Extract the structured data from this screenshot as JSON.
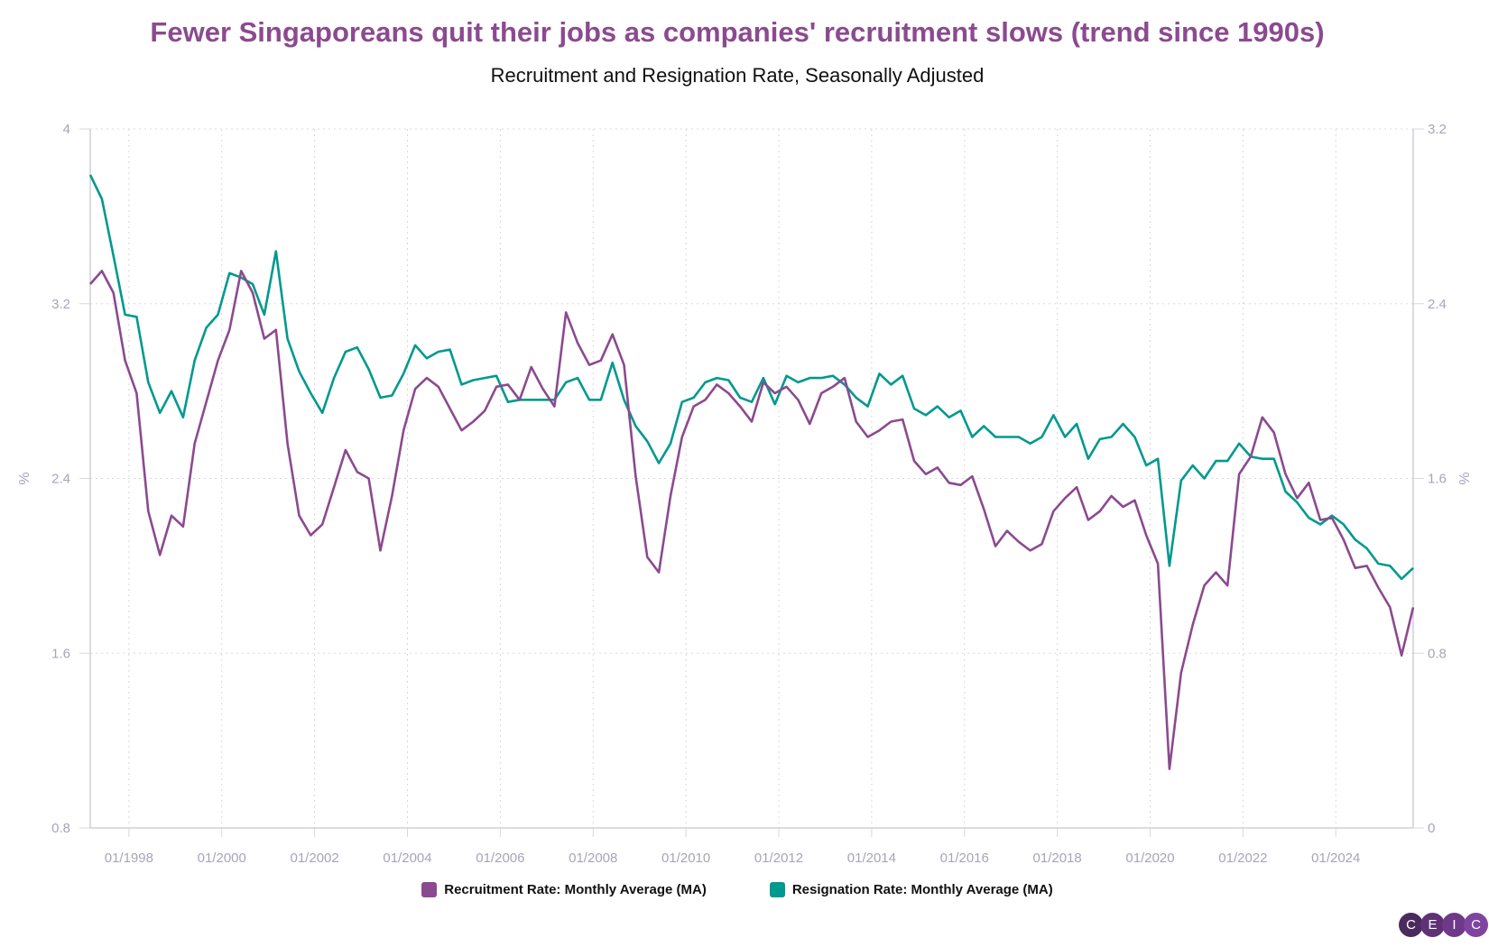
{
  "title": "Fewer Singaporeans quit their jobs as companies' recruitment slows (trend since 1990s)",
  "subtitle": "Recruitment and Resignation Rate, Seasonally Adjusted",
  "logo": [
    "C",
    "E",
    "I",
    "C"
  ],
  "colors": {
    "recruitment": "#8b4a8f",
    "resignation": "#00998f",
    "axis": "#a8a4b8",
    "grid": "#d8d8d8"
  },
  "chart_data": {
    "type": "line",
    "title": "Fewer Singaporeans quit their jobs as companies' recruitment slows (trend since 1990s)",
    "subtitle": "Recruitment and Resignation Rate, Seasonally Adjusted",
    "ylabel_left": "%",
    "ylabel_right": "%",
    "ylim_left": [
      0.8,
      4
    ],
    "ylim_right": [
      0,
      3.2
    ],
    "yticks_left": [
      "0.8",
      "1.6",
      "2.4",
      "3.2",
      "4"
    ],
    "yticks_right": [
      "0",
      "0.8",
      "1.6",
      "2.4",
      "3.2"
    ],
    "xticks": [
      "01/1998",
      "01/2000",
      "01/2002",
      "01/2004",
      "01/2006",
      "01/2008",
      "01/2010",
      "01/2012",
      "01/2014",
      "01/2016",
      "01/2018",
      "01/2020",
      "01/2022",
      "01/2024"
    ],
    "grid": true,
    "legend_position": "bottom",
    "x": [
      "03/1997",
      "06/1997",
      "09/1997",
      "12/1997",
      "03/1998",
      "06/1998",
      "09/1998",
      "12/1998",
      "03/1999",
      "06/1999",
      "09/1999",
      "12/1999",
      "03/2000",
      "06/2000",
      "09/2000",
      "12/2000",
      "03/2001",
      "06/2001",
      "09/2001",
      "12/2001",
      "03/2002",
      "06/2002",
      "09/2002",
      "12/2002",
      "03/2003",
      "06/2003",
      "09/2003",
      "12/2003",
      "03/2004",
      "06/2004",
      "09/2004",
      "12/2004",
      "03/2005",
      "06/2005",
      "09/2005",
      "12/2005",
      "03/2006",
      "06/2006",
      "09/2006",
      "12/2006",
      "03/2007",
      "06/2007",
      "09/2007",
      "12/2007",
      "03/2008",
      "06/2008",
      "09/2008",
      "12/2008",
      "03/2009",
      "06/2009",
      "09/2009",
      "12/2009",
      "03/2010",
      "06/2010",
      "09/2010",
      "12/2010",
      "03/2011",
      "06/2011",
      "09/2011",
      "12/2011",
      "03/2012",
      "06/2012",
      "09/2012",
      "12/2012",
      "03/2013",
      "06/2013",
      "09/2013",
      "12/2013",
      "03/2014",
      "06/2014",
      "09/2014",
      "12/2014",
      "03/2015",
      "06/2015",
      "09/2015",
      "12/2015",
      "03/2016",
      "06/2016",
      "09/2016",
      "12/2016",
      "03/2017",
      "06/2017",
      "09/2017",
      "12/2017",
      "03/2018",
      "06/2018",
      "09/2018",
      "12/2018",
      "03/2019",
      "06/2019",
      "09/2019",
      "12/2019",
      "03/2020",
      "06/2020",
      "09/2020",
      "12/2020",
      "03/2021",
      "06/2021",
      "09/2021",
      "12/2021",
      "03/2022",
      "06/2022",
      "09/2022",
      "12/2022",
      "03/2023",
      "06/2023",
      "09/2023",
      "12/2023",
      "03/2024",
      "06/2024",
      "09/2024",
      "12/2024",
      "03/2025",
      "06/2025",
      "09/2025"
    ],
    "series": [
      {
        "name": "Recruitment Rate: Monthly Average (MA)",
        "axis": "left",
        "values": [
          3.29,
          3.35,
          3.25,
          2.94,
          2.79,
          2.25,
          2.05,
          2.23,
          2.18,
          2.56,
          2.75,
          2.94,
          3.08,
          3.35,
          3.25,
          3.04,
          3.08,
          2.56,
          2.23,
          2.14,
          2.19,
          2.36,
          2.53,
          2.43,
          2.4,
          2.07,
          2.32,
          2.62,
          2.81,
          2.86,
          2.82,
          2.72,
          2.62,
          2.66,
          2.71,
          2.82,
          2.83,
          2.76,
          2.91,
          2.81,
          2.73,
          3.16,
          3.02,
          2.92,
          2.94,
          3.06,
          2.92,
          2.41,
          2.04,
          1.97,
          2.32,
          2.59,
          2.73,
          2.76,
          2.83,
          2.79,
          2.73,
          2.66,
          2.84,
          2.79,
          2.82,
          2.76,
          2.65,
          2.79,
          2.82,
          2.86,
          2.66,
          2.59,
          2.62,
          2.66,
          2.67,
          2.48,
          2.42,
          2.45,
          2.38,
          2.37,
          2.41,
          2.26,
          2.09,
          2.16,
          2.11,
          2.07,
          2.1,
          2.25,
          2.31,
          2.36,
          2.21,
          2.25,
          2.32,
          2.27,
          2.3,
          2.14,
          2.01,
          1.07,
          1.51,
          1.73,
          1.91,
          1.97,
          1.91,
          2.42,
          2.5,
          2.68,
          2.61,
          2.42,
          2.31,
          2.38,
          2.21,
          2.22,
          2.12,
          1.99,
          2.0,
          1.9,
          1.81,
          1.59,
          1.81
        ]
      },
      {
        "name": "Resignation Rate: Monthly Average (MA)",
        "axis": "right",
        "values": [
          2.99,
          2.88,
          2.62,
          2.35,
          2.34,
          2.04,
          1.9,
          2.0,
          1.88,
          2.14,
          2.29,
          2.35,
          2.54,
          2.52,
          2.49,
          2.35,
          2.64,
          2.24,
          2.09,
          1.99,
          1.9,
          2.06,
          2.18,
          2.2,
          2.1,
          1.97,
          1.98,
          2.08,
          2.21,
          2.15,
          2.18,
          2.19,
          2.03,
          2.05,
          2.06,
          2.07,
          1.95,
          1.96,
          1.96,
          1.96,
          1.96,
          2.04,
          2.06,
          1.96,
          1.96,
          2.13,
          1.96,
          1.84,
          1.77,
          1.67,
          1.76,
          1.95,
          1.97,
          2.04,
          2.06,
          2.05,
          1.97,
          1.95,
          2.06,
          1.94,
          2.07,
          2.04,
          2.06,
          2.06,
          2.07,
          2.03,
          1.97,
          1.93,
          2.08,
          2.03,
          2.07,
          1.92,
          1.89,
          1.93,
          1.88,
          1.91,
          1.79,
          1.84,
          1.79,
          1.79,
          1.79,
          1.76,
          1.79,
          1.89,
          1.79,
          1.85,
          1.69,
          1.78,
          1.79,
          1.85,
          1.79,
          1.66,
          1.69,
          1.2,
          1.59,
          1.66,
          1.6,
          1.68,
          1.68,
          1.76,
          1.7,
          1.69,
          1.69,
          1.54,
          1.49,
          1.42,
          1.39,
          1.43,
          1.39,
          1.32,
          1.28,
          1.21,
          1.2,
          1.14,
          1.19
        ]
      }
    ]
  }
}
